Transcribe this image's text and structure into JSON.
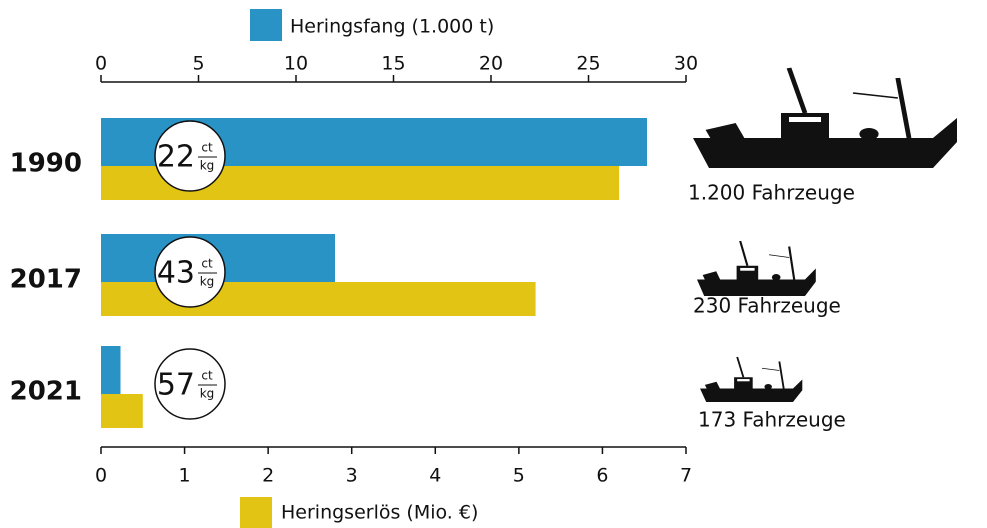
{
  "chart_data": {
    "type": "bar",
    "orientation": "horizontal",
    "categories": [
      "1990",
      "2017",
      "2021"
    ],
    "series": [
      {
        "name": "Heringsfang (1.000 t)",
        "color": "#2a93c6",
        "values": [
          28,
          12,
          1
        ],
        "axis": "x"
      },
      {
        "name": "Heringserlös (Mio. €)",
        "color": "#e2c514",
        "values": [
          6.2,
          5.2,
          0.5
        ],
        "axis": "x2"
      }
    ],
    "xlim": [
      0,
      30
    ],
    "xticks": [
      0,
      5,
      10,
      15,
      20,
      25,
      30
    ],
    "x2lim": [
      0,
      7
    ],
    "x2ticks": [
      0,
      1,
      2,
      3,
      4,
      5,
      6,
      7
    ],
    "annotations": [
      {
        "price": 22,
        "unit_top": "ct",
        "unit_bottom": "kg",
        "vessels": "1.200 Fahrzeuge"
      },
      {
        "price": 43,
        "unit_top": "ct",
        "unit_bottom": "kg",
        "vessels": "230 Fahrzeuge"
      },
      {
        "price": 57,
        "unit_top": "ct",
        "unit_bottom": "kg",
        "vessels": "173 Fahrzeuge"
      }
    ]
  }
}
